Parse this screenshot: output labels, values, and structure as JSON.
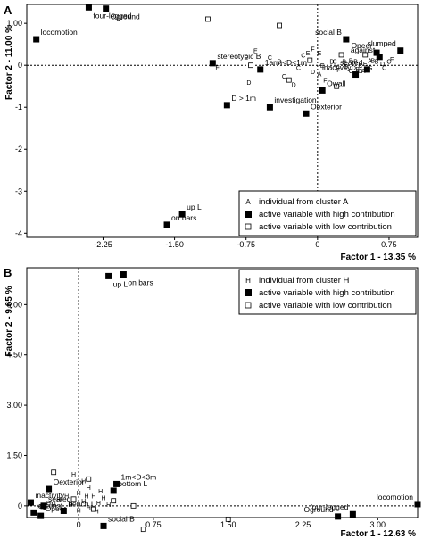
{
  "chart_data": [
    {
      "panel_label": "A",
      "type": "scatter",
      "xlabel": "Factor 1  -  13.35 %",
      "ylabel": "Factor 2  -  11.00 %",
      "xlim": [
        -3.05,
        1.05
      ],
      "ylim": [
        -4.1,
        1.45
      ],
      "x_ticks": [
        {
          "v": -2.25,
          "label": "-2.25"
        },
        {
          "v": -1.5,
          "label": "-1.50"
        },
        {
          "v": -0.75,
          "label": "-0.75"
        },
        {
          "v": 0,
          "label": "0"
        },
        {
          "v": 0.75,
          "label": "0.75"
        }
      ],
      "y_ticks": [
        {
          "v": 1,
          "label": "1.00"
        },
        {
          "v": 0,
          "label": "0"
        },
        {
          "v": -1,
          "label": "-1"
        },
        {
          "v": -2,
          "label": "-2"
        },
        {
          "v": -3,
          "label": "-3"
        },
        {
          "v": -4,
          "label": "-4"
        }
      ],
      "legend": {
        "position": "bottom-right",
        "entries": [
          {
            "marker": "letter",
            "symbol": "A",
            "label": "individual from cluster A"
          },
          {
            "marker": "filled",
            "label": "active variable with high contribution"
          },
          {
            "marker": "open",
            "label": "active variable with low contribution"
          }
        ]
      },
      "active_high": [
        {
          "label": "four-legged",
          "x": -2.4,
          "y": 1.38
        },
        {
          "label": "Oground",
          "x": -2.22,
          "y": 1.35
        },
        {
          "label": "locomotion",
          "x": -2.95,
          "y": 0.62
        },
        {
          "label": "stereotypic B",
          "x": -1.1,
          "y": 0.05
        },
        {
          "label": "1arm<D<1m",
          "x": -0.6,
          "y": -0.1
        },
        {
          "label": "D > 1m",
          "x": -0.95,
          "y": -0.95
        },
        {
          "label": "investigation",
          "x": -0.5,
          "y": -1.0
        },
        {
          "label": "Oexterior",
          "x": -0.12,
          "y": -1.15
        },
        {
          "label": "Owall",
          "x": 0.05,
          "y": -0.6
        },
        {
          "label": "social B",
          "x": 0.3,
          "y": 0.62
        },
        {
          "label": "slumped",
          "x": 0.87,
          "y": 0.35
        },
        {
          "label": "Opeer",
          "x": 0.62,
          "y": 0.3
        },
        {
          "label": "against",
          "x": 0.65,
          "y": 0.2
        },
        {
          "label": "seated",
          "x": 0.52,
          "y": -0.1
        },
        {
          "label": "inactivity",
          "x": 0.4,
          "y": -0.22
        },
        {
          "label": "up L",
          "x": -1.42,
          "y": -3.55
        },
        {
          "label": "on bars",
          "x": -1.58,
          "y": -3.8
        }
      ],
      "active_low": [
        {
          "x": -1.15,
          "y": 1.1
        },
        {
          "x": -0.4,
          "y": 0.95
        },
        {
          "x": 0.25,
          "y": 0.25
        },
        {
          "x": 0.5,
          "y": 0.25
        },
        {
          "x": -0.08,
          "y": 0.12
        },
        {
          "x": 0.2,
          "y": -0.5
        },
        {
          "x": -0.7,
          "y": 0.0
        },
        {
          "x": -0.3,
          "y": -0.35
        }
      ],
      "individuals": {
        "cluster": "A",
        "points": [
          {
            "t": "E",
            "x": -0.65,
            "y": 0.35
          },
          {
            "t": "E",
            "x": -0.75,
            "y": 0.2
          },
          {
            "t": "E",
            "x": -1.05,
            "y": -0.05
          },
          {
            "t": "D",
            "x": -0.72,
            "y": -0.4
          },
          {
            "t": "C",
            "x": -0.5,
            "y": 0.2
          },
          {
            "t": "D",
            "x": -0.4,
            "y": 0.1
          },
          {
            "t": "C",
            "x": -0.35,
            "y": -0.25
          },
          {
            "t": "D",
            "x": -0.25,
            "y": -0.45
          },
          {
            "t": "C",
            "x": -0.15,
            "y": 0.25
          },
          {
            "t": "E",
            "x": -0.1,
            "y": 0.3
          },
          {
            "t": "F",
            "x": -0.05,
            "y": 0.4
          },
          {
            "t": "E",
            "x": 0.02,
            "y": 0.3
          },
          {
            "t": "C",
            "x": -0.2,
            "y": -0.05
          },
          {
            "t": "D",
            "x": -0.05,
            "y": -0.15
          },
          {
            "t": "A",
            "x": 0.02,
            "y": -0.2
          },
          {
            "t": "F",
            "x": 0.08,
            "y": -0.35
          },
          {
            "t": "D",
            "x": 0.15,
            "y": 0.1
          },
          {
            "t": "E",
            "x": 0.05,
            "y": 0.0
          },
          {
            "t": "F",
            "x": 0.22,
            "y": -0.1
          },
          {
            "t": "C",
            "x": 0.18,
            "y": 0.1
          },
          {
            "t": "B",
            "x": 0.28,
            "y": 0.1
          },
          {
            "t": "B",
            "x": 0.35,
            "y": 0.12
          },
          {
            "t": "C",
            "x": 0.45,
            "y": 0.0
          },
          {
            "t": "D",
            "x": 0.3,
            "y": -0.02
          },
          {
            "t": "D",
            "x": 0.38,
            "y": -0.05
          },
          {
            "t": "G",
            "x": 0.45,
            "y": -0.12
          },
          {
            "t": "A",
            "x": 0.55,
            "y": 0.12
          },
          {
            "t": "B",
            "x": 0.62,
            "y": 0.1
          },
          {
            "t": "D",
            "x": 0.68,
            "y": 0.05
          },
          {
            "t": "C",
            "x": 0.75,
            "y": 0.1
          },
          {
            "t": "E",
            "x": 0.5,
            "y": 0.05
          },
          {
            "t": "C",
            "x": 0.35,
            "y": -0.12
          },
          {
            "t": "B",
            "x": 0.42,
            "y": -0.08
          },
          {
            "t": "B",
            "x": 0.58,
            "y": 0.12
          },
          {
            "t": "G",
            "x": 0.55,
            "y": -0.05
          },
          {
            "t": "A",
            "x": 0.48,
            "y": -0.12
          },
          {
            "t": "C",
            "x": 0.7,
            "y": -0.05
          },
          {
            "t": "F",
            "x": 0.78,
            "y": 0.15
          },
          {
            "t": "B",
            "x": 0.4,
            "y": 0.1
          }
        ]
      }
    },
    {
      "panel_label": "B",
      "type": "scatter",
      "xlabel": "Factor 1  -  12.63 %",
      "ylabel": "Factor 2  -  9.65 %",
      "xlim": [
        -0.52,
        3.4
      ],
      "ylim": [
        -0.35,
        7.1
      ],
      "x_ticks": [
        {
          "v": 0,
          "label": "0"
        },
        {
          "v": 0.75,
          "label": "0.75"
        },
        {
          "v": 1.5,
          "label": "1.50"
        },
        {
          "v": 2.25,
          "label": "2.25"
        },
        {
          "v": 3,
          "label": "3.00"
        }
      ],
      "y_ticks": [
        {
          "v": 6,
          "label": "6.00"
        },
        {
          "v": 4.5,
          "label": "4.50"
        },
        {
          "v": 3,
          "label": "3.00"
        },
        {
          "v": 1.5,
          "label": "1.50"
        },
        {
          "v": 0,
          "label": "0"
        }
      ],
      "legend": {
        "position": "top-right",
        "entries": [
          {
            "marker": "letter",
            "symbol": "H",
            "label": "individual from cluster H"
          },
          {
            "marker": "filled",
            "label": "active variable with high contribution"
          },
          {
            "marker": "open",
            "label": "active variable with low contribution"
          }
        ]
      },
      "active_high": [
        {
          "label": "up L",
          "x": 0.3,
          "y": 6.85
        },
        {
          "label": "on bars",
          "x": 0.45,
          "y": 6.9
        },
        {
          "label": "locomotion",
          "x": 3.4,
          "y": 0.05
        },
        {
          "label": "four-legged",
          "x": 2.75,
          "y": -0.25
        },
        {
          "label": "Oground",
          "x": 2.6,
          "y": -0.32
        },
        {
          "label": "social B",
          "x": 0.25,
          "y": -0.6
        },
        {
          "label": "bottom L",
          "x": 0.35,
          "y": 0.45
        },
        {
          "label": "1m<D<3m",
          "x": 0.38,
          "y": 0.65
        },
        {
          "label": "Oexterior",
          "x": -0.3,
          "y": 0.5
        },
        {
          "label": "inactivity",
          "x": -0.48,
          "y": 0.1
        },
        {
          "label": "seated",
          "x": -0.35,
          "y": 0.0
        },
        {
          "label": "against",
          "x": -0.45,
          "y": -0.2
        },
        {
          "label": "Opeer",
          "x": -0.38,
          "y": -0.3
        },
        {
          "label": "bench L",
          "x": -0.15,
          "y": -0.15
        }
      ],
      "active_low": [
        {
          "x": -0.25,
          "y": 1.0
        },
        {
          "x": 0.1,
          "y": 0.8
        },
        {
          "x": 0.35,
          "y": 0.15
        },
        {
          "x": 0.55,
          "y": 0.0
        },
        {
          "x": 0.65,
          "y": -0.7
        },
        {
          "x": 1.5,
          "y": -0.4
        },
        {
          "x": -0.05,
          "y": 0.2
        },
        {
          "x": 0.15,
          "y": -0.1
        }
      ],
      "individuals": {
        "cluster": "H",
        "points": [
          {
            "t": "H",
            "x": -0.05,
            "y": 0.95
          },
          {
            "t": "H",
            "x": 0.05,
            "y": 0.75
          },
          {
            "t": "H",
            "x": 0.1,
            "y": 0.55
          },
          {
            "t": "H",
            "x": 0.0,
            "y": 0.4
          },
          {
            "t": "H",
            "x": -0.12,
            "y": 0.3
          },
          {
            "t": "H",
            "x": -0.2,
            "y": 0.2
          },
          {
            "t": "H",
            "x": 0.15,
            "y": 0.3
          },
          {
            "t": "H",
            "x": 0.25,
            "y": 0.25
          },
          {
            "t": "H",
            "x": 0.05,
            "y": 0.15
          },
          {
            "t": "H",
            "x": -0.08,
            "y": 0.05
          },
          {
            "t": "H",
            "x": -0.25,
            "y": 0.05
          },
          {
            "t": "H",
            "x": -0.4,
            "y": 0.0
          },
          {
            "t": "H",
            "x": 0.1,
            "y": -0.05
          },
          {
            "t": "H",
            "x": 0.2,
            "y": 0.1
          },
          {
            "t": "H",
            "x": 0.3,
            "y": 0.05
          },
          {
            "t": "H",
            "x": -0.15,
            "y": -0.08
          },
          {
            "t": "H",
            "x": 0.0,
            "y": -0.12
          },
          {
            "t": "H",
            "x": 0.18,
            "y": -0.15
          },
          {
            "t": "H",
            "x": -0.3,
            "y": 0.1
          },
          {
            "t": "H",
            "x": 0.08,
            "y": 0.3
          },
          {
            "t": "H",
            "x": 0.22,
            "y": 0.45
          }
        ]
      }
    }
  ]
}
